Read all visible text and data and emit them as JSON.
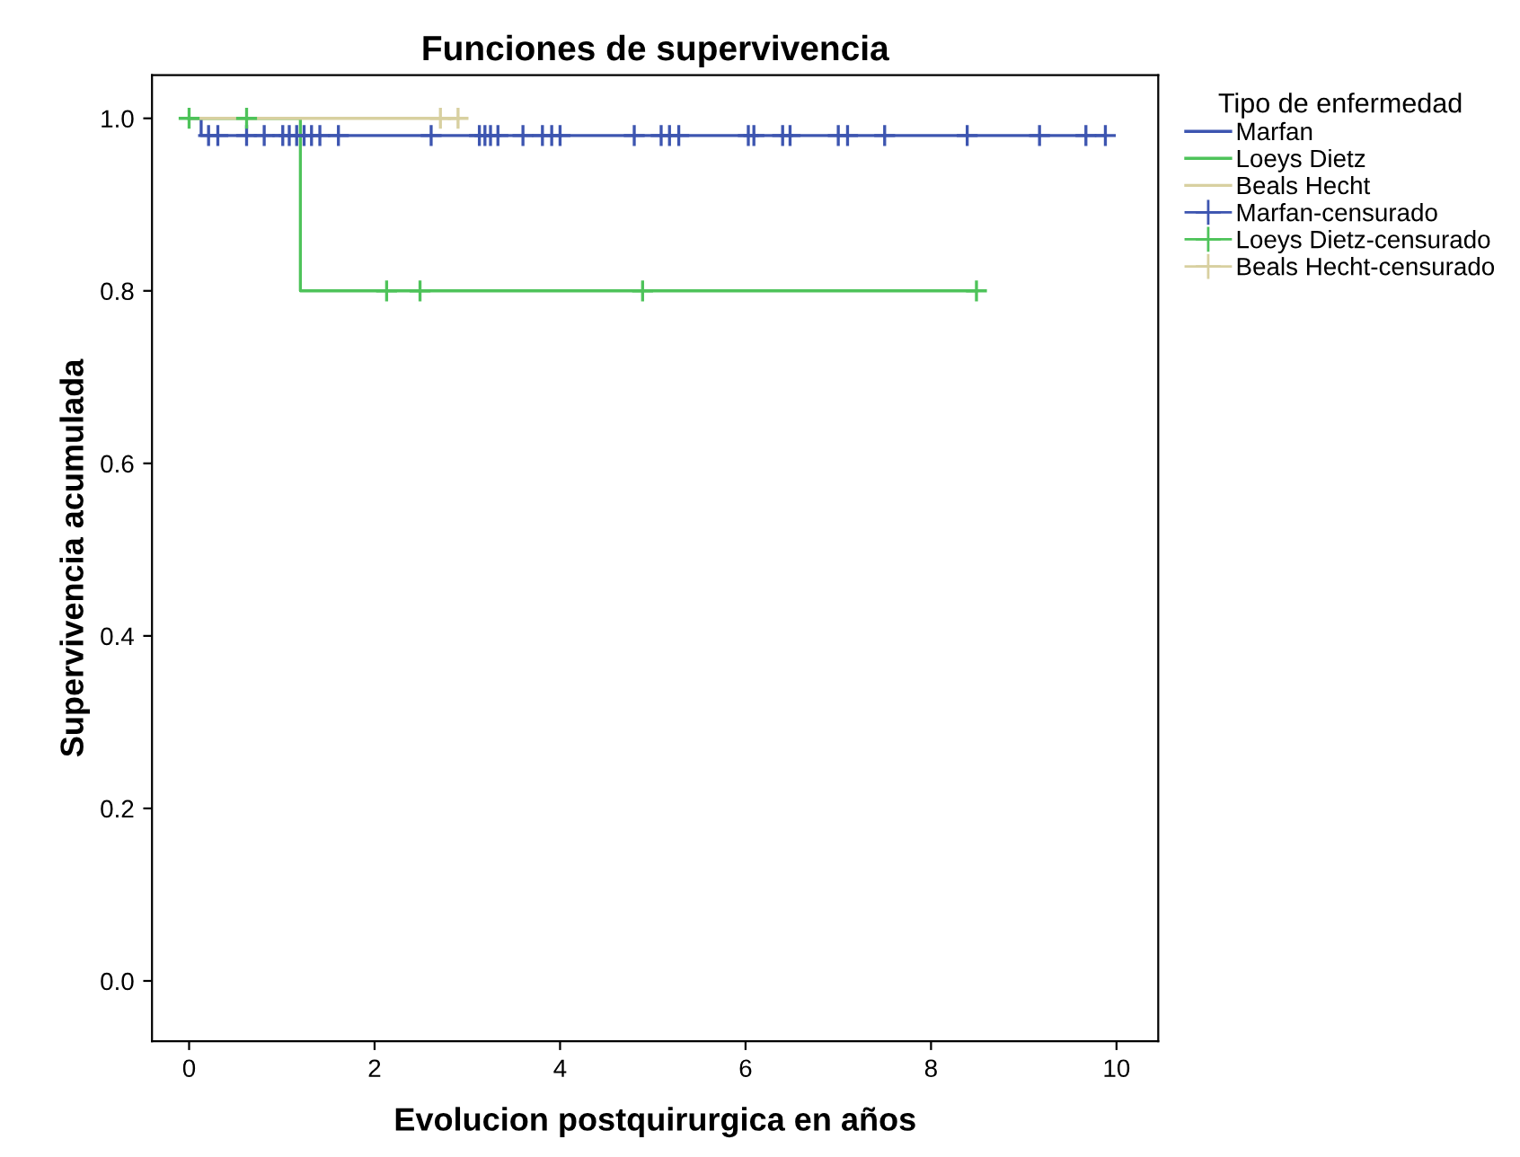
{
  "chart_data": {
    "type": "step",
    "title": "Funciones de supervivencia",
    "xlabel": "Evolucion postquirurgica en años",
    "ylabel": "Supervivencia acumulada",
    "legend_title": "Tipo de enfermedad",
    "series": [
      {
        "name": "Marfan",
        "color": "#3d55b0",
        "x": [
          0,
          0.13,
          9.88
        ],
        "values": [
          1.0,
          0.98,
          0.98
        ]
      },
      {
        "name": "Loeys Dietz",
        "color": "#4ec35a",
        "x": [
          0,
          1.2,
          8.49
        ],
        "values": [
          1.0,
          0.8,
          0.8
        ]
      },
      {
        "name": "Beals Hecht",
        "color": "#d8d0a0",
        "x": [
          0,
          2.9
        ],
        "values": [
          1.0,
          1.0
        ]
      },
      {
        "name": "Marfan-censurado",
        "type": "scatter",
        "marker": "cross",
        "color": "#3d55b0",
        "x": [
          0.21,
          0.31,
          0.62,
          0.81,
          1.01,
          1.08,
          1.16,
          1.24,
          1.32,
          1.41,
          1.61,
          2.61,
          3.13,
          3.19,
          3.25,
          3.33,
          3.6,
          3.81,
          3.91,
          4.0,
          4.8,
          5.09,
          5.18,
          5.28,
          6.03,
          6.09,
          6.4,
          6.48,
          7.0,
          7.1,
          7.5,
          8.39,
          9.17,
          9.67,
          9.88
        ],
        "values": [
          0.98,
          0.98,
          0.98,
          0.98,
          0.98,
          0.98,
          0.98,
          0.98,
          0.98,
          0.98,
          0.98,
          0.98,
          0.98,
          0.98,
          0.98,
          0.98,
          0.98,
          0.98,
          0.98,
          0.98,
          0.98,
          0.98,
          0.98,
          0.98,
          0.98,
          0.98,
          0.98,
          0.98,
          0.98,
          0.98,
          0.98,
          0.98,
          0.98,
          0.98,
          0.98
        ]
      },
      {
        "name": "Loeys Dietz-censurado",
        "type": "scatter",
        "marker": "cross",
        "color": "#4ec35a",
        "x": [
          0.0,
          0.62,
          2.13,
          2.49,
          4.89,
          8.49
        ],
        "values": [
          1.0,
          1.0,
          0.8,
          0.8,
          0.8,
          0.8
        ]
      },
      {
        "name": "Beals Hecht-censurado",
        "type": "scatter",
        "marker": "cross",
        "color": "#d8d0a0",
        "x": [
          2.71,
          2.9
        ],
        "values": [
          1.0,
          1.0
        ]
      }
    ],
    "xlim": [
      -0.4,
      10.45
    ],
    "ylim": [
      -0.07,
      1.05
    ],
    "xticks": [
      0,
      2,
      4,
      6,
      8,
      10
    ],
    "yticks": [
      {
        "value": 0,
        "label": "0.0"
      },
      {
        "value": 0.2,
        "label": "0.2"
      },
      {
        "value": 0.4,
        "label": "0.4"
      },
      {
        "value": 0.6,
        "label": "0.6"
      },
      {
        "value": 0.8,
        "label": "0.8"
      },
      {
        "value": 1.0,
        "label": "1.0"
      }
    ],
    "grid": false,
    "legend": "right"
  }
}
